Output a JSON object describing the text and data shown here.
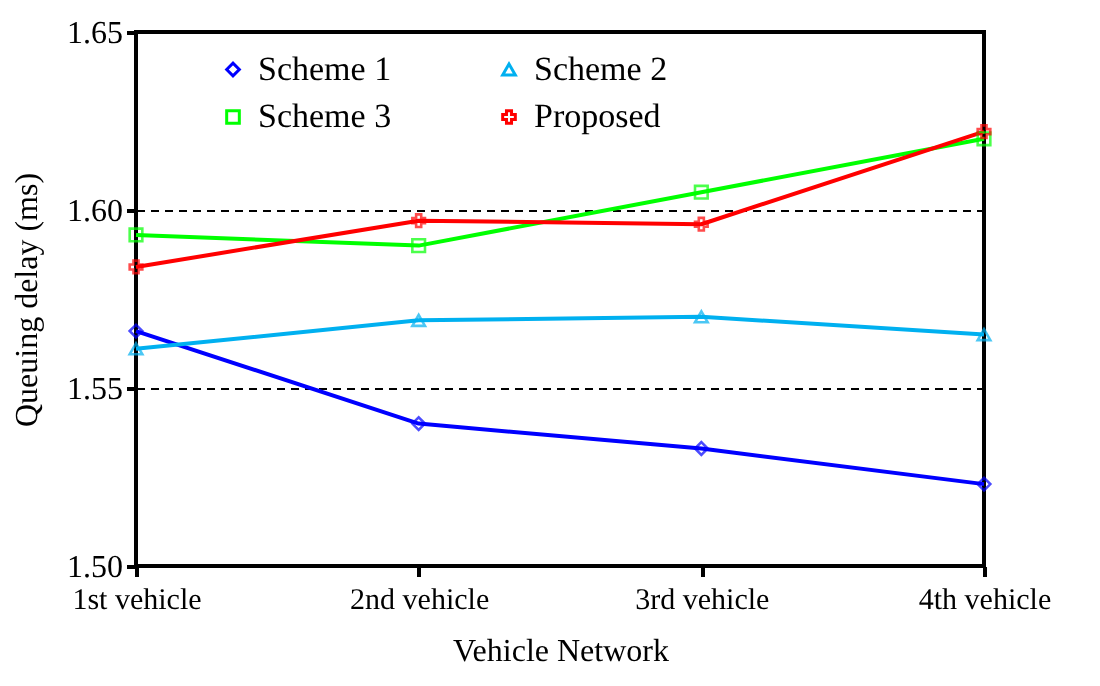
{
  "chart_data": {
    "type": "line",
    "xlabel": "Vehicle Network",
    "ylabel": "Queuing delay (ms)",
    "categories": [
      "1st vehicle",
      "2nd vehicle",
      "3rd vehicle",
      "4th vehicle"
    ],
    "series": [
      {
        "name": "Scheme 1",
        "color": "#0000ff",
        "marker": "diamond",
        "values": [
          1.566,
          1.54,
          1.533,
          1.523
        ]
      },
      {
        "name": "Scheme 2",
        "color": "#00b0f0",
        "marker": "triangle",
        "values": [
          1.561,
          1.569,
          1.57,
          1.565
        ]
      },
      {
        "name": "Scheme 3",
        "color": "#00ff00",
        "marker": "square",
        "values": [
          1.593,
          1.59,
          1.605,
          1.62
        ]
      },
      {
        "name": "Proposed",
        "color": "#ff0000",
        "marker": "cross",
        "values": [
          1.584,
          1.597,
          1.596,
          1.622
        ]
      }
    ],
    "ylim": [
      1.5,
      1.65
    ],
    "yticks": [
      {
        "value": 1.5,
        "label": "1.50"
      },
      1.55,
      {
        "value": 1.6,
        "label": "1.60"
      },
      1.65
    ],
    "grid": "y",
    "legend": "top left"
  }
}
